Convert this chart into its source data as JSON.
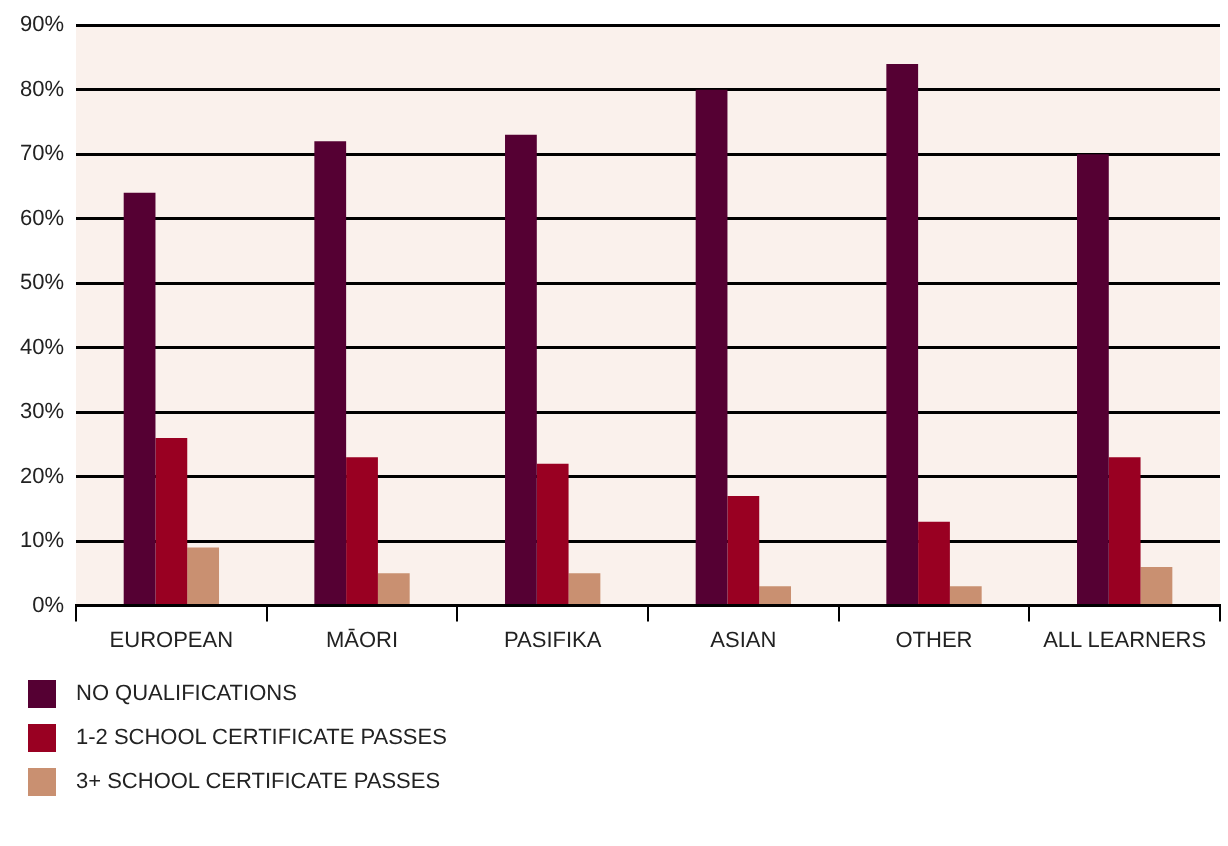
{
  "chart_data": {
    "type": "bar",
    "categories": [
      "EUROPEAN",
      "MĀORI",
      "PASIFIKA",
      "ASIAN",
      "OTHER",
      "ALL LEARNERS"
    ],
    "series": [
      {
        "name": "NO QUALIFICATIONS",
        "color": "#550033",
        "values": [
          64,
          72,
          73,
          80,
          84,
          70
        ]
      },
      {
        "name": "1-2 SCHOOL CERTIFICATE PASSES",
        "color": "#990022",
        "values": [
          26,
          23,
          22,
          17,
          13,
          23
        ]
      },
      {
        "name": "3+ SCHOOL CERTIFICATE PASSES",
        "color": "#c99071",
        "values": [
          9,
          5,
          5,
          3,
          3,
          6
        ]
      }
    ],
    "ylim": [
      0,
      90
    ],
    "yticks": [
      {
        "value": 0,
        "label": "0%"
      },
      {
        "value": 10,
        "label": "10%"
      },
      {
        "value": 20,
        "label": "20%"
      },
      {
        "value": 30,
        "label": "30%"
      },
      {
        "value": 40,
        "label": "40%"
      },
      {
        "value": 50,
        "label": "50%"
      },
      {
        "value": 60,
        "label": "60%"
      },
      {
        "value": 70,
        "label": "70%"
      },
      {
        "value": 80,
        "label": "80%"
      },
      {
        "value": 90,
        "label": "90%"
      }
    ],
    "grid": "y",
    "legend": "bottom left"
  }
}
